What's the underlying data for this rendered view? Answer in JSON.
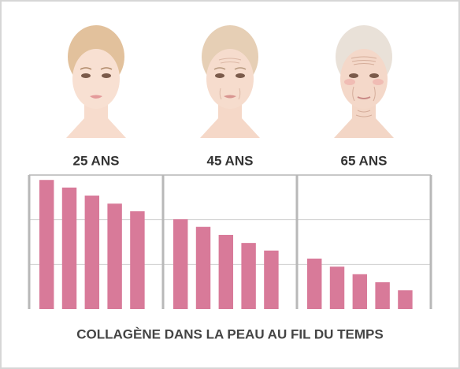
{
  "chart_data": {
    "type": "bar",
    "title": "COLLAGÈNE DANS LA PEAU AU FIL DU TEMPS",
    "color": "#d87a99",
    "ylim": [
      0,
      3
    ],
    "yticks": [
      1,
      2
    ],
    "grid": true,
    "groups": [
      {
        "label": "25 ANS",
        "values": [
          2.89,
          2.72,
          2.54,
          2.36,
          2.19
        ]
      },
      {
        "label": "45 ANS",
        "values": [
          2.01,
          1.84,
          1.66,
          1.48,
          1.31
        ]
      },
      {
        "label": "65 ANS",
        "values": [
          1.13,
          0.95,
          0.78,
          0.6,
          0.42
        ]
      }
    ]
  }
}
